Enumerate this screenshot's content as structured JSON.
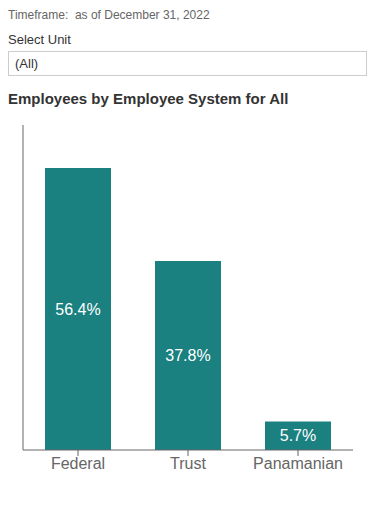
{
  "chart_data": {
    "type": "bar",
    "title": "Employees by Employee System for All",
    "annotations": [
      "Timeframe:  as of December 31, 2022",
      "Select Unit",
      "(All)"
    ],
    "categories": [
      "Federal",
      "Trust",
      "Panamanian"
    ],
    "values": [
      56.4,
      37.8,
      5.7
    ],
    "value_labels": [
      "56.4%",
      "37.8%",
      "5.7%"
    ],
    "data_labels": true,
    "color": "#1a8080",
    "ylim": [
      0,
      65
    ],
    "yticks": [],
    "tick_labels": "x",
    "grid": false
  }
}
